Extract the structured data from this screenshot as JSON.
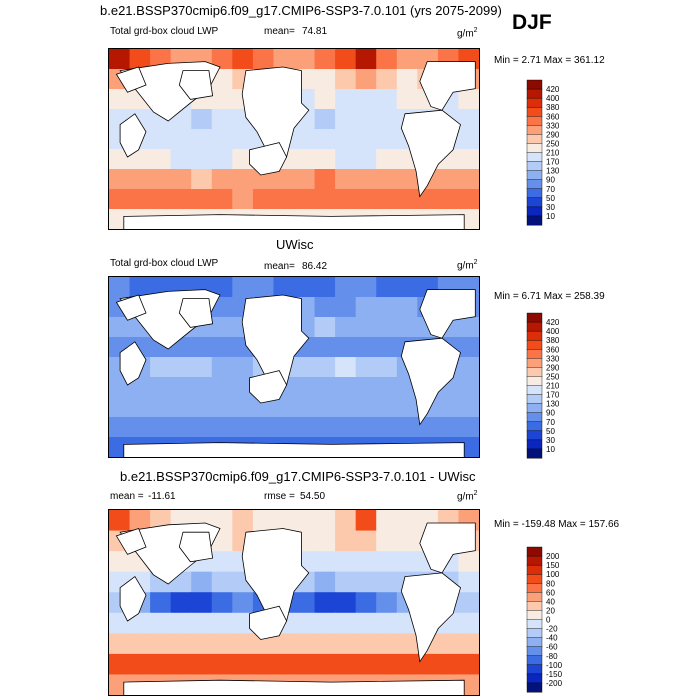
{
  "main_title": "b.e21.BSSP370cmip6.f09_g17.CMIP6-SSP3-7.0.101 (yrs 2075-2099)",
  "season": "DJF",
  "chart_data": [
    {
      "type": "heatmap",
      "subtitle": "Total grd-box cloud LWP",
      "mean_label": "mean=",
      "mean_value": "74.81",
      "units": "g/m",
      "units_exp": "2",
      "min_max": "Min =   2.71 Max = 361.12",
      "levels": [
        "420",
        "400",
        "380",
        "360",
        "330",
        "290",
        "250",
        "210",
        "170",
        "130",
        "90",
        "70",
        "50",
        "30",
        "10"
      ],
      "colors": [
        "#8c0a00",
        "#b51700",
        "#dc2e08",
        "#f24c1a",
        "#fa7447",
        "#fca07a",
        "#fdc9ad",
        "#f8ebe2",
        "#d6e4fb",
        "#b3ccf7",
        "#8cb0f2",
        "#6490ec",
        "#3c6ce3",
        "#1c45d6",
        "#0a26bf",
        "#02127a"
      ],
      "field": [
        [
          1,
          3,
          4,
          5,
          5,
          4,
          3,
          4,
          5,
          5,
          4,
          3,
          1,
          4,
          5,
          5,
          4,
          3
        ],
        [
          5,
          6,
          6,
          6,
          7,
          7,
          6,
          6,
          6,
          7,
          7,
          6,
          5,
          6,
          7,
          6,
          6,
          5
        ],
        [
          7,
          7,
          8,
          8,
          7,
          7,
          7,
          8,
          8,
          8,
          7,
          8,
          8,
          8,
          7,
          7,
          8,
          7
        ],
        [
          8,
          8,
          8,
          8,
          9,
          8,
          8,
          8,
          8,
          8,
          9,
          8,
          8,
          8,
          8,
          8,
          8,
          8
        ],
        [
          8,
          8,
          8,
          8,
          8,
          8,
          8,
          8,
          8,
          8,
          8,
          8,
          8,
          8,
          8,
          8,
          8,
          8
        ],
        [
          7,
          7,
          7,
          8,
          8,
          8,
          7,
          7,
          7,
          7,
          7,
          8,
          8,
          7,
          7,
          7,
          7,
          7
        ],
        [
          5,
          5,
          5,
          5,
          6,
          5,
          5,
          5,
          5,
          5,
          4,
          5,
          5,
          5,
          5,
          5,
          5,
          5
        ],
        [
          4,
          4,
          4,
          4,
          4,
          4,
          5,
          4,
          4,
          4,
          4,
          4,
          4,
          4,
          4,
          4,
          4,
          4
        ],
        [
          7,
          7,
          7,
          7,
          7,
          7,
          7,
          7,
          7,
          7,
          7,
          7,
          7,
          7,
          7,
          7,
          7,
          7
        ]
      ]
    },
    {
      "type": "heatmap",
      "title": "UWisc",
      "subtitle": "Total grd-box cloud LWP",
      "mean_label": "mean=",
      "mean_value": "86.42",
      "units": "g/m",
      "units_exp": "2",
      "min_max": "Min =   6.71 Max = 258.39",
      "levels": [
        "420",
        "400",
        "380",
        "360",
        "330",
        "290",
        "250",
        "210",
        "170",
        "130",
        "90",
        "70",
        "50",
        "30",
        "10"
      ],
      "colors": [
        "#8c0a00",
        "#b51700",
        "#dc2e08",
        "#f24c1a",
        "#fa7447",
        "#fca07a",
        "#fdc9ad",
        "#f8ebe2",
        "#d6e4fb",
        "#b3ccf7",
        "#8cb0f2",
        "#6490ec",
        "#3c6ce3",
        "#1c45d6",
        "#0a26bf",
        "#02127a"
      ],
      "field": [
        [
          11,
          12,
          12,
          12,
          12,
          12,
          11,
          11,
          12,
          12,
          12,
          11,
          11,
          12,
          12,
          12,
          11,
          11
        ],
        [
          11,
          11,
          10,
          10,
          11,
          11,
          11,
          10,
          10,
          10,
          11,
          11,
          10,
          10,
          10,
          11,
          11,
          11
        ],
        [
          10,
          10,
          10,
          10,
          10,
          10,
          10,
          10,
          10,
          10,
          9,
          10,
          10,
          10,
          10,
          10,
          10,
          10
        ],
        [
          11,
          11,
          11,
          11,
          11,
          11,
          11,
          11,
          11,
          11,
          11,
          11,
          11,
          11,
          11,
          11,
          11,
          11
        ],
        [
          10,
          10,
          9,
          9,
          9,
          10,
          10,
          9,
          9,
          9,
          9,
          8,
          9,
          9,
          10,
          10,
          10,
          10
        ],
        [
          10,
          10,
          10,
          10,
          10,
          10,
          10,
          10,
          10,
          10,
          10,
          10,
          10,
          10,
          10,
          10,
          10,
          10
        ],
        [
          10,
          10,
          10,
          10,
          10,
          10,
          10,
          10,
          10,
          10,
          10,
          10,
          10,
          10,
          10,
          10,
          10,
          10
        ],
        [
          11,
          11,
          11,
          11,
          11,
          11,
          11,
          11,
          11,
          11,
          11,
          11,
          11,
          11,
          11,
          11,
          11,
          11
        ],
        [
          12,
          12,
          12,
          12,
          12,
          12,
          12,
          12,
          12,
          12,
          12,
          12,
          12,
          12,
          12,
          12,
          12,
          12
        ]
      ]
    },
    {
      "type": "heatmap",
      "title": "b.e21.BSSP370cmip6.f09_g17.CMIP6-SSP3-7.0.101 - UWisc",
      "mean_label": "mean =",
      "mean_value": "-11.61",
      "rmse_label": "rmse =",
      "rmse_value": "54.50",
      "units": "g/m",
      "units_exp": "2",
      "min_max": "Min = -159.48 Max = 157.66",
      "levels": [
        "200",
        "150",
        "100",
        "80",
        "60",
        "40",
        "20",
        "0",
        "-20",
        "-40",
        "-60",
        "-80",
        "-100",
        "-150",
        "-200"
      ],
      "colors": [
        "#8c0a00",
        "#b51700",
        "#dc2e08",
        "#f24c1a",
        "#fa7447",
        "#fca07a",
        "#fdc9ad",
        "#f8ebe2",
        "#d6e4fb",
        "#b3ccf7",
        "#8cb0f2",
        "#6490ec",
        "#3c6ce3",
        "#1c45d6",
        "#0a26bf",
        "#02127a"
      ],
      "field": [
        [
          3,
          5,
          6,
          7,
          7,
          7,
          6,
          7,
          7,
          7,
          7,
          6,
          3,
          7,
          7,
          7,
          6,
          5
        ],
        [
          6,
          6,
          7,
          7,
          7,
          7,
          6,
          7,
          7,
          7,
          7,
          6,
          6,
          7,
          7,
          7,
          6,
          6
        ],
        [
          7,
          7,
          8,
          8,
          8,
          8,
          8,
          8,
          9,
          8,
          8,
          8,
          8,
          8,
          8,
          8,
          8,
          7
        ],
        [
          8,
          8,
          9,
          9,
          10,
          9,
          9,
          9,
          9,
          9,
          10,
          9,
          9,
          9,
          9,
          9,
          9,
          8
        ],
        [
          9,
          10,
          12,
          13,
          13,
          12,
          11,
          12,
          12,
          12,
          13,
          13,
          12,
          11,
          10,
          9,
          9,
          9
        ],
        [
          8,
          8,
          8,
          8,
          8,
          8,
          8,
          8,
          8,
          8,
          8,
          8,
          8,
          8,
          8,
          8,
          8,
          8
        ],
        [
          6,
          6,
          6,
          6,
          6,
          6,
          6,
          6,
          6,
          6,
          6,
          6,
          6,
          6,
          6,
          6,
          6,
          6
        ],
        [
          3,
          3,
          3,
          3,
          3,
          3,
          3,
          3,
          3,
          3,
          3,
          3,
          3,
          3,
          3,
          3,
          3,
          3
        ],
        [
          5,
          5,
          5,
          5,
          5,
          5,
          5,
          5,
          5,
          5,
          5,
          5,
          5,
          5,
          5,
          5,
          5,
          5
        ]
      ]
    }
  ]
}
